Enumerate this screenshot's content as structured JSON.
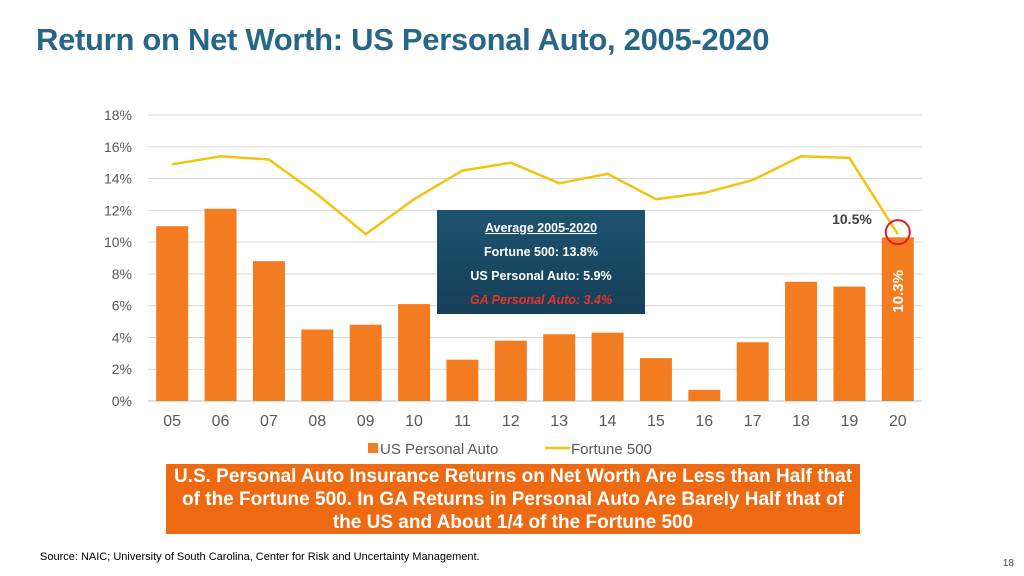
{
  "title": "Return on Net Worth: US Personal Auto, 2005-2020",
  "chart_data": {
    "type": "bar",
    "categories": [
      "05",
      "06",
      "07",
      "08",
      "09",
      "10",
      "11",
      "12",
      "13",
      "14",
      "15",
      "16",
      "17",
      "18",
      "19",
      "20"
    ],
    "series": [
      {
        "name": "US Personal Auto",
        "type": "bar",
        "color": "#f47c20",
        "values": [
          11.0,
          12.1,
          8.8,
          4.5,
          4.8,
          6.1,
          2.6,
          3.8,
          4.2,
          4.3,
          2.7,
          0.7,
          3.7,
          7.5,
          7.2,
          10.3
        ]
      },
      {
        "name": "Fortune 500",
        "type": "line",
        "color": "#f2c40f",
        "values": [
          14.9,
          15.4,
          15.2,
          13.0,
          10.5,
          12.7,
          14.5,
          15.0,
          13.7,
          14.3,
          12.7,
          13.1,
          13.9,
          15.4,
          15.3,
          10.5
        ]
      }
    ],
    "ylim": [
      0,
      18
    ],
    "yticks": [
      "0%",
      "2%",
      "4%",
      "6%",
      "8%",
      "10%",
      "12%",
      "14%",
      "16%",
      "18%"
    ],
    "grid": true,
    "legend_position": "bottom",
    "annotations": {
      "fortune_last": "10.5%",
      "bar_last": "10.3%"
    }
  },
  "average_box": {
    "title": "Average 2005-2020",
    "fortune": "Fortune 500: 13.8%",
    "us": "US Personal Auto: 5.9%",
    "ga": "GA Personal Auto: 3.4%"
  },
  "callout": "U.S. Personal Auto Insurance Returns on Net Worth Are Less than Half that of the Fortune 500.  In GA Returns in Personal Auto Are Barely Half that of the US and About 1/4 of the Fortune 500",
  "source": "Source: NAIC; University of South Carolina, Center for Risk and Uncertainty Management.",
  "page_number": "18",
  "colors": {
    "title": "#266788",
    "bar": "#f47c20",
    "line": "#f2c40f",
    "callout_bg": "#ee6a12",
    "box_bg": "#1d5370",
    "ga_text": "#e8312a",
    "marker_circle": "#e31b23"
  }
}
